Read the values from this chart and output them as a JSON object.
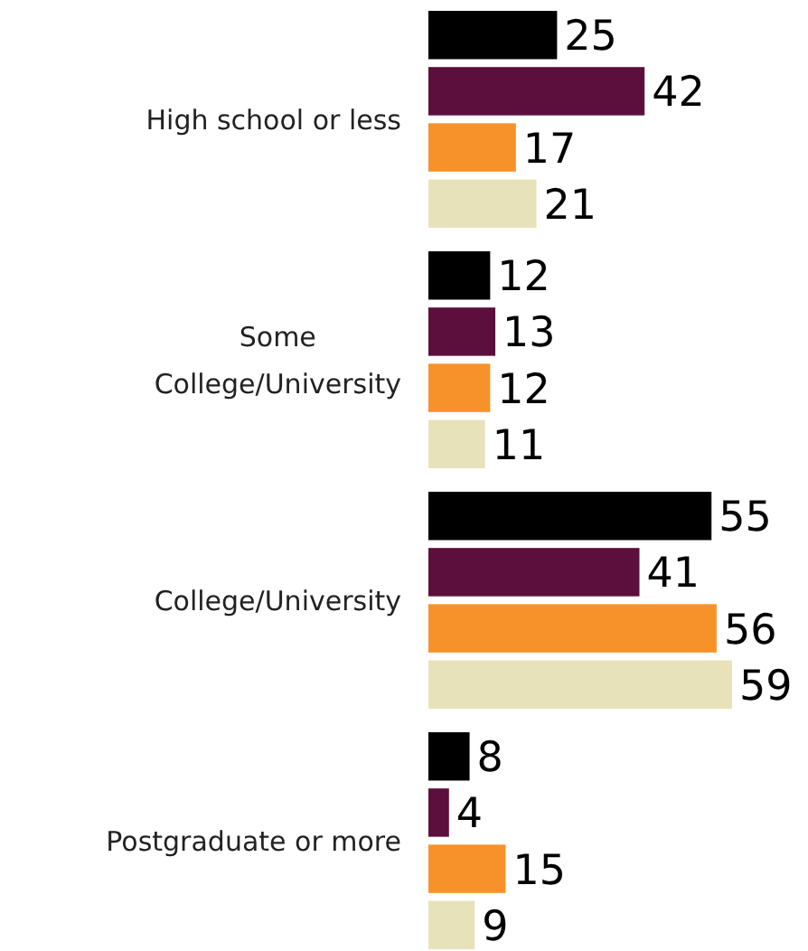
{
  "chart_data": {
    "type": "bar",
    "orientation": "horizontal",
    "data_labels": true,
    "categories": [
      "High school or less",
      "Some College/University",
      "College/University",
      "Postgraduate or more"
    ],
    "series": [
      {
        "color": "#000000",
        "values": [
          25,
          12,
          55,
          8
        ]
      },
      {
        "color": "#5c0f3c",
        "values": [
          42,
          13,
          41,
          4
        ]
      },
      {
        "color": "#f7922a",
        "values": [
          17,
          12,
          56,
          15
        ]
      },
      {
        "color": "#e8e2bb",
        "values": [
          21,
          11,
          59,
          9
        ]
      }
    ]
  }
}
